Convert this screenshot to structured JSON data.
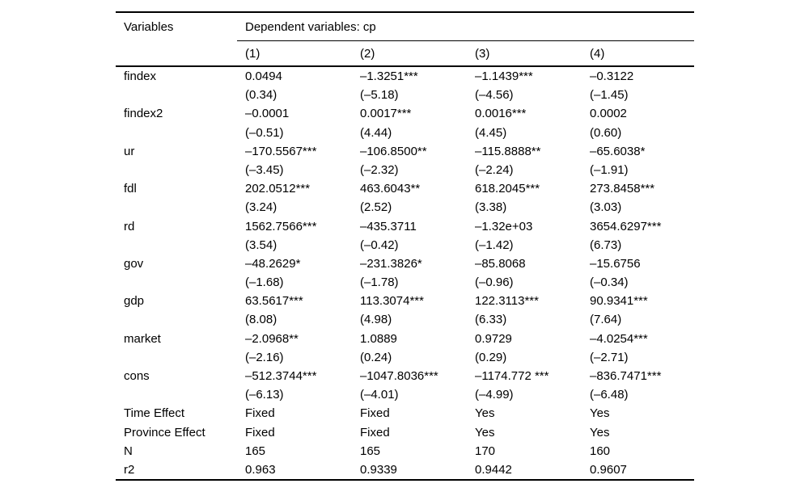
{
  "colors": {
    "background": "#ffffff",
    "text": "#000000",
    "rule": "#000000"
  },
  "table": {
    "col1_header": "Variables",
    "group_header": "Dependent variables: cp",
    "column_headers": [
      "(1)",
      "(2)",
      "(3)",
      "(4)"
    ],
    "rows": [
      {
        "variable": "findex",
        "coefficients": [
          "0.0494",
          "–1.3251***",
          "–1.1439***",
          "–0.3122"
        ],
        "tstats": [
          "(0.34)",
          "(–5.18)",
          "(–4.56)",
          "(–1.45)"
        ]
      },
      {
        "variable": "findex2",
        "coefficients": [
          "–0.0001",
          "0.0017***",
          "0.0016***",
          "0.0002"
        ],
        "tstats": [
          "(–0.51)",
          "(4.44)",
          "(4.45)",
          "(0.60)"
        ]
      },
      {
        "variable": "ur",
        "coefficients": [
          "–170.5567***",
          "–106.8500**",
          "–115.8888**",
          "–65.6038*"
        ],
        "tstats": [
          "(–3.45)",
          "(–2.32)",
          "(–2.24)",
          "(–1.91)"
        ]
      },
      {
        "variable": "fdl",
        "coefficients": [
          "202.0512***",
          "463.6043**",
          "618.2045***",
          "273.8458***"
        ],
        "tstats": [
          "(3.24)",
          "(2.52)",
          "(3.38)",
          "(3.03)"
        ]
      },
      {
        "variable": "rd",
        "coefficients": [
          "1562.7566***",
          "–435.3711",
          "–1.32e+03",
          "3654.6297***"
        ],
        "tstats": [
          "(3.54)",
          "(–0.42)",
          "(–1.42)",
          "(6.73)"
        ]
      },
      {
        "variable": "gov",
        "coefficients": [
          "–48.2629*",
          "–231.3826*",
          "–85.8068",
          "–15.6756"
        ],
        "tstats": [
          "(–1.68)",
          "(–1.78)",
          "(–0.96)",
          "(–0.34)"
        ]
      },
      {
        "variable": "gdp",
        "coefficients": [
          "63.5617***",
          "113.3074***",
          "122.3113***",
          "90.9341***"
        ],
        "tstats": [
          "(8.08)",
          "(4.98)",
          "(6.33)",
          "(7.64)"
        ]
      },
      {
        "variable": "market",
        "coefficients": [
          "–2.0968**",
          "1.0889",
          "0.9729",
          "–4.0254***"
        ],
        "tstats": [
          "(–2.16)",
          "(0.24)",
          "(0.29)",
          "(–2.71)"
        ]
      },
      {
        "variable": "cons",
        "coefficients": [
          "–512.3744***",
          "–1047.8036***",
          "–1174.772 ***",
          "–836.7471***"
        ],
        "tstats": [
          "(–6.13)",
          "(–4.01)",
          "(–4.99)",
          "(–6.48)"
        ]
      }
    ],
    "footer_rows": [
      {
        "label": "Time Effect",
        "values": [
          "Fixed",
          "Fixed",
          "Yes",
          "Yes"
        ]
      },
      {
        "label": "Province Effect",
        "values": [
          "Fixed",
          "Fixed",
          "Yes",
          "Yes"
        ]
      },
      {
        "label": "N",
        "values": [
          "165",
          "165",
          "170",
          "160"
        ]
      },
      {
        "label": "r2",
        "values": [
          "0.963",
          "0.9339",
          "0.9442",
          "0.9607"
        ]
      }
    ]
  }
}
